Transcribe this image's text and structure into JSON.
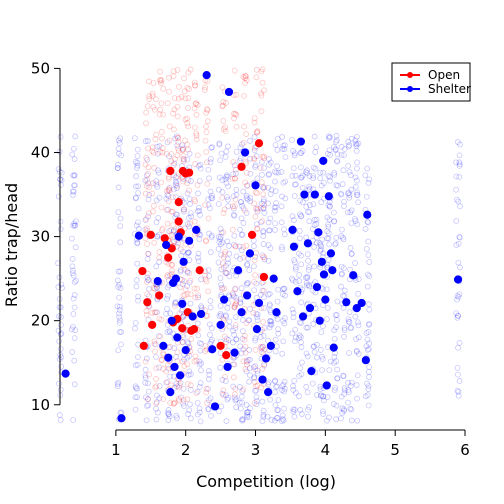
{
  "chart_data": {
    "type": "scatter",
    "title": "",
    "xlabel": "Competition (log)",
    "ylabel": "Ratio trap/head",
    "xlim": [
      0.2,
      6.1
    ],
    "ylim": [
      7,
      51
    ],
    "xticks": [
      1,
      2,
      3,
      4,
      5,
      6
    ],
    "yticks": [
      10,
      20,
      30,
      40,
      50
    ],
    "grid": false,
    "legend_position": "top-right",
    "colors": {
      "Open": "#ff0000",
      "Shelter": "#0000ff"
    },
    "legend": [
      {
        "name": "Open",
        "color": "#ff0000"
      },
      {
        "name": "Shelter",
        "color": "#0000ff"
      }
    ],
    "background_cloud": {
      "description_shown": "faint open circles, one vertical strip per competition value",
      "open_strips_x": [
        1.45,
        1.55,
        1.65,
        1.75,
        1.82,
        1.9,
        1.97,
        2.05,
        2.15,
        2.3,
        2.55,
        2.7,
        2.85,
        3.0,
        3.1
      ],
      "shelter_strips_x": [
        0.2,
        0.4,
        1.05,
        1.3,
        1.45,
        1.6,
        1.75,
        1.85,
        1.95,
        2.05,
        2.2,
        2.35,
        2.5,
        2.6,
        2.7,
        2.8,
        2.9,
        3.0,
        3.1,
        3.2,
        3.3,
        3.4,
        3.55,
        3.65,
        3.75,
        3.85,
        3.95,
        4.05,
        4.15,
        4.25,
        4.35,
        4.45,
        4.6,
        5.9
      ]
    },
    "series": [
      {
        "name": "Open",
        "color": "#ff0000",
        "points": [
          [
            1.38,
            25.9
          ],
          [
            1.4,
            17.0
          ],
          [
            1.45,
            22.2
          ],
          [
            1.5,
            30.2
          ],
          [
            1.52,
            19.5
          ],
          [
            1.62,
            23.0
          ],
          [
            1.7,
            29.8
          ],
          [
            1.75,
            27.5
          ],
          [
            1.78,
            37.8
          ],
          [
            1.8,
            28.6
          ],
          [
            1.82,
            19.8
          ],
          [
            1.88,
            20.2
          ],
          [
            1.9,
            31.8
          ],
          [
            1.9,
            34.1
          ],
          [
            1.93,
            30.5
          ],
          [
            1.95,
            19.1
          ],
          [
            1.96,
            37.8
          ],
          [
            2.0,
            37.5
          ],
          [
            2.03,
            21.0
          ],
          [
            2.05,
            37.6
          ],
          [
            2.08,
            18.8
          ],
          [
            2.12,
            19.0
          ],
          [
            2.2,
            26.0
          ],
          [
            2.5,
            17.0
          ],
          [
            2.58,
            15.9
          ],
          [
            2.8,
            38.3
          ],
          [
            2.95,
            30.2
          ],
          [
            3.05,
            41.1
          ],
          [
            3.12,
            25.2
          ]
        ]
      },
      {
        "name": "Shelter",
        "color": "#0000ff",
        "points": [
          [
            0.28,
            13.7
          ],
          [
            1.08,
            8.4
          ],
          [
            1.33,
            30.1
          ],
          [
            1.6,
            24.7
          ],
          [
            1.68,
            17.0
          ],
          [
            1.72,
            29.0
          ],
          [
            1.75,
            15.6
          ],
          [
            1.78,
            11.5
          ],
          [
            1.8,
            20.0
          ],
          [
            1.82,
            24.5
          ],
          [
            1.84,
            14.5
          ],
          [
            1.86,
            25.0
          ],
          [
            1.88,
            18.0
          ],
          [
            1.9,
            30.0
          ],
          [
            1.92,
            13.5
          ],
          [
            1.95,
            22.0
          ],
          [
            1.97,
            27.0
          ],
          [
            2.0,
            16.5
          ],
          [
            2.05,
            29.5
          ],
          [
            2.1,
            20.5
          ],
          [
            2.15,
            30.8
          ],
          [
            2.22,
            20.8
          ],
          [
            2.3,
            49.2
          ],
          [
            2.38,
            16.6
          ],
          [
            2.42,
            9.8
          ],
          [
            2.5,
            19.5
          ],
          [
            2.55,
            22.5
          ],
          [
            2.6,
            14.5
          ],
          [
            2.62,
            47.2
          ],
          [
            2.7,
            16.2
          ],
          [
            2.75,
            26.0
          ],
          [
            2.8,
            21.0
          ],
          [
            2.85,
            40.0
          ],
          [
            2.88,
            23.0
          ],
          [
            2.92,
            28.0
          ],
          [
            3.0,
            36.1
          ],
          [
            3.02,
            19.0
          ],
          [
            3.05,
            22.1
          ],
          [
            3.1,
            13.0
          ],
          [
            3.15,
            15.5
          ],
          [
            3.18,
            11.5
          ],
          [
            3.22,
            17.0
          ],
          [
            3.26,
            25.0
          ],
          [
            3.3,
            21.0
          ],
          [
            3.53,
            30.8
          ],
          [
            3.55,
            28.8
          ],
          [
            3.6,
            23.5
          ],
          [
            3.65,
            41.3
          ],
          [
            3.68,
            20.5
          ],
          [
            3.7,
            35.0
          ],
          [
            3.75,
            29.2
          ],
          [
            3.78,
            21.5
          ],
          [
            3.8,
            14.0
          ],
          [
            3.85,
            35.0
          ],
          [
            3.88,
            24.0
          ],
          [
            3.9,
            30.5
          ],
          [
            3.92,
            20.0
          ],
          [
            3.95,
            27.0
          ],
          [
            3.97,
            39.0
          ],
          [
            3.98,
            25.5
          ],
          [
            4.0,
            22.5
          ],
          [
            4.02,
            12.3
          ],
          [
            4.05,
            34.8
          ],
          [
            4.08,
            28.0
          ],
          [
            4.1,
            26.0
          ],
          [
            4.12,
            16.8
          ],
          [
            4.3,
            22.2
          ],
          [
            4.4,
            25.4
          ],
          [
            4.45,
            21.5
          ],
          [
            4.52,
            22.1
          ],
          [
            4.58,
            15.3
          ],
          [
            4.6,
            32.6
          ],
          [
            5.9,
            24.9
          ]
        ]
      }
    ]
  }
}
